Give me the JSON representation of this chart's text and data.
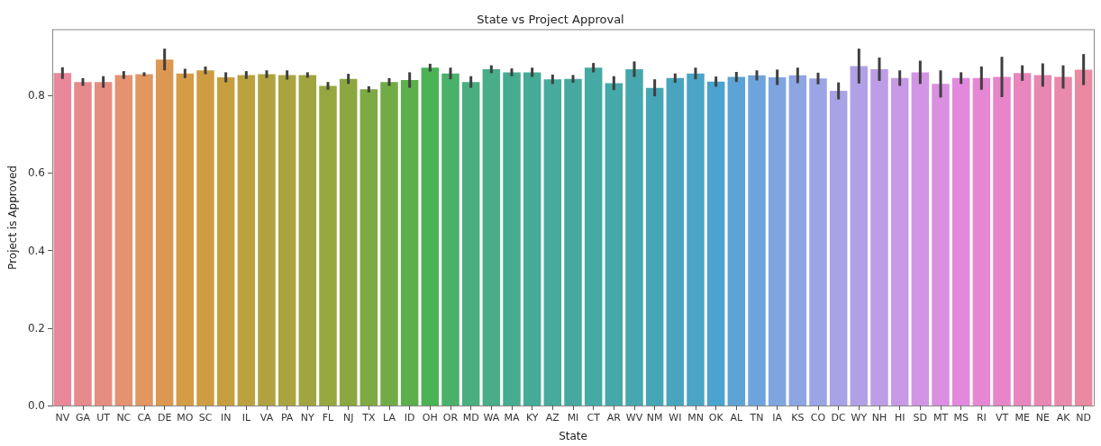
{
  "chart_data": {
    "type": "bar",
    "title": "State vs Project Approval",
    "xlabel": "State",
    "ylabel": "Project is Approved",
    "categories": [
      "NV",
      "GA",
      "UT",
      "NC",
      "CA",
      "DE",
      "MO",
      "SC",
      "IN",
      "IL",
      "VA",
      "PA",
      "NY",
      "FL",
      "NJ",
      "TX",
      "LA",
      "ID",
      "OH",
      "OR",
      "MD",
      "WA",
      "MA",
      "KY",
      "AZ",
      "MI",
      "CT",
      "AR",
      "WV",
      "NM",
      "WI",
      "MN",
      "OK",
      "AL",
      "TN",
      "IA",
      "KS",
      "CO",
      "DC",
      "WY",
      "NH",
      "HI",
      "SD",
      "MT",
      "MS",
      "RI",
      "VT",
      "ME",
      "NE",
      "AK",
      "ND"
    ],
    "values": [
      0.858,
      0.835,
      0.835,
      0.853,
      0.855,
      0.893,
      0.857,
      0.865,
      0.847,
      0.853,
      0.855,
      0.853,
      0.853,
      0.825,
      0.843,
      0.816,
      0.835,
      0.84,
      0.872,
      0.857,
      0.835,
      0.868,
      0.86,
      0.86,
      0.842,
      0.843,
      0.872,
      0.832,
      0.868,
      0.82,
      0.845,
      0.857,
      0.836,
      0.848,
      0.852,
      0.847,
      0.852,
      0.844,
      0.812,
      0.876,
      0.868,
      0.845,
      0.86,
      0.83,
      0.845,
      0.845,
      0.848,
      0.858,
      0.853,
      0.848,
      0.867
    ],
    "errors": [
      0.015,
      0.01,
      0.015,
      0.01,
      0.005,
      0.028,
      0.012,
      0.01,
      0.013,
      0.01,
      0.01,
      0.012,
      0.007,
      0.01,
      0.013,
      0.008,
      0.01,
      0.02,
      0.01,
      0.015,
      0.015,
      0.01,
      0.01,
      0.012,
      0.012,
      0.01,
      0.012,
      0.018,
      0.02,
      0.022,
      0.012,
      0.015,
      0.013,
      0.013,
      0.013,
      0.02,
      0.02,
      0.015,
      0.022,
      0.045,
      0.03,
      0.02,
      0.03,
      0.035,
      0.015,
      0.03,
      0.052,
      0.02,
      0.03,
      0.03,
      0.04
    ],
    "colors": [
      "#e8889a",
      "#e78a8d",
      "#e68d80",
      "#e49270",
      "#e29660",
      "#dc9852",
      "#d69b45",
      "#ce9d42",
      "#c59f3f",
      "#bca13f",
      "#b2a23f",
      "#aaa43f",
      "#a1a53f",
      "#96a73f",
      "#8aa83f",
      "#7daa42",
      "#70ab45",
      "#5daf4c",
      "#4ab354",
      "#4ab16a",
      "#4aae80",
      "#48ad88",
      "#47ab90",
      "#46ab96",
      "#46aa9c",
      "#45a9a0",
      "#45a9a4",
      "#45a8a9",
      "#46a7ae",
      "#47a6b6",
      "#48a5bd",
      "#4aa4c6",
      "#4ba3cf",
      "#5ca3d6",
      "#6ea4dd",
      "#7ea5e0",
      "#8ea5e3",
      "#9ba4e5",
      "#a8a2e6",
      "#b2a0e6",
      "#bc9de6",
      "#c799e6",
      "#d295e5",
      "#da8fe1",
      "#e288dd",
      "#e587d3",
      "#e785c8",
      "#e886be",
      "#e987b3",
      "#e989ab",
      "#e98aa2"
    ],
    "ylim": [
      0,
      0.97
    ],
    "yticks": [
      {
        "value": 0,
        "label": "0.0"
      },
      0.2,
      0.4,
      0.6,
      0.8
    ],
    "grid": false
  }
}
